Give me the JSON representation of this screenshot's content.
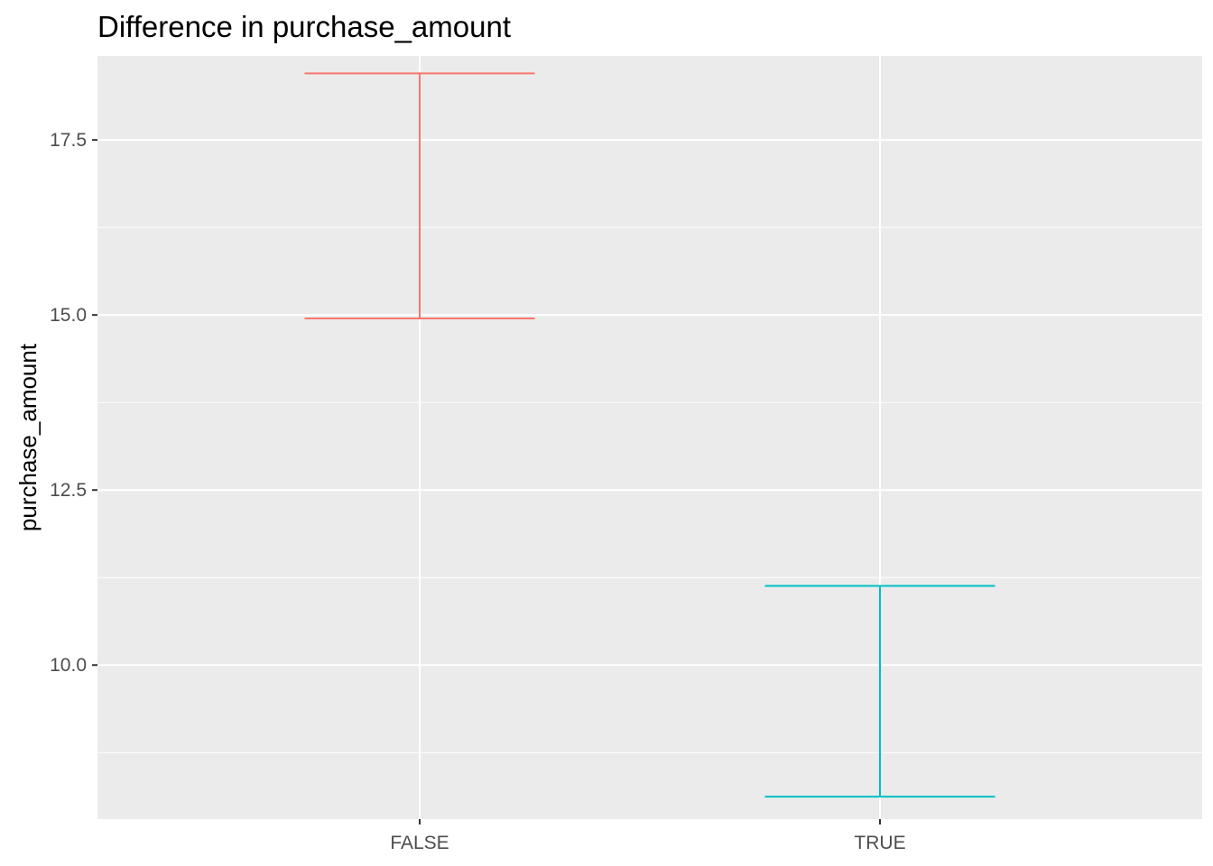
{
  "chart_data": {
    "type": "errorbar",
    "title": "Difference in purchase_amount",
    "xlabel": "",
    "ylabel": "purchase_amount",
    "categories": [
      "FALSE",
      "TRUE"
    ],
    "series": [
      {
        "category": "FALSE",
        "ymin": 14.95,
        "ymax": 18.45,
        "color": "#F8766D"
      },
      {
        "category": "TRUE",
        "ymin": 8.12,
        "ymax": 11.13,
        "color": "#00BFC4"
      }
    ],
    "ylim": [
      7.8,
      18.7
    ],
    "yticks": [
      10.0,
      12.5,
      15.0,
      17.5
    ],
    "ytick_labels": [
      "10.0",
      "12.5",
      "15.0",
      "17.5"
    ],
    "grid": true,
    "panel_color": "#EBEBEB",
    "legend": "none"
  }
}
